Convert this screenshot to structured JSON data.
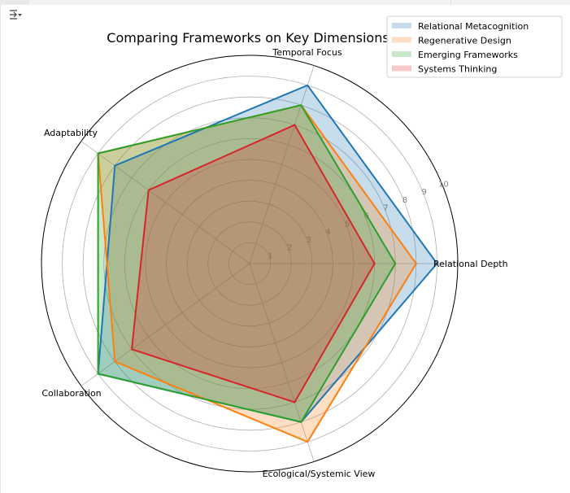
{
  "toolbar": {
    "menu_icon": "collapse-arrow-icon"
  },
  "chart_data": {
    "type": "radar",
    "title": "Comparing Frameworks on Key Dimensions",
    "categories": [
      "Relational Depth",
      "Temporal Focus",
      "Adaptability",
      "Collaboration",
      "Ecological/Systemic View"
    ],
    "rlim": [
      0,
      10
    ],
    "rticks": [
      "1",
      "2",
      "3",
      "4",
      "5",
      "6",
      "7",
      "8",
      "9",
      "10"
    ],
    "grid": true,
    "legend_position": "top-right",
    "series": [
      {
        "name": "Relational Metacognition",
        "values": [
          9,
          9,
          8,
          9,
          8
        ],
        "color": "#1f77b4"
      },
      {
        "name": "Regenerative Design",
        "values": [
          8,
          8,
          9,
          8,
          9
        ],
        "color": "#ff7f0e"
      },
      {
        "name": "Emerging Frameworks",
        "values": [
          7,
          8,
          9,
          9,
          8
        ],
        "color": "#2ca02c"
      },
      {
        "name": "Systems Thinking",
        "values": [
          6,
          7,
          6,
          7,
          7
        ],
        "color": "#d62728"
      }
    ]
  }
}
